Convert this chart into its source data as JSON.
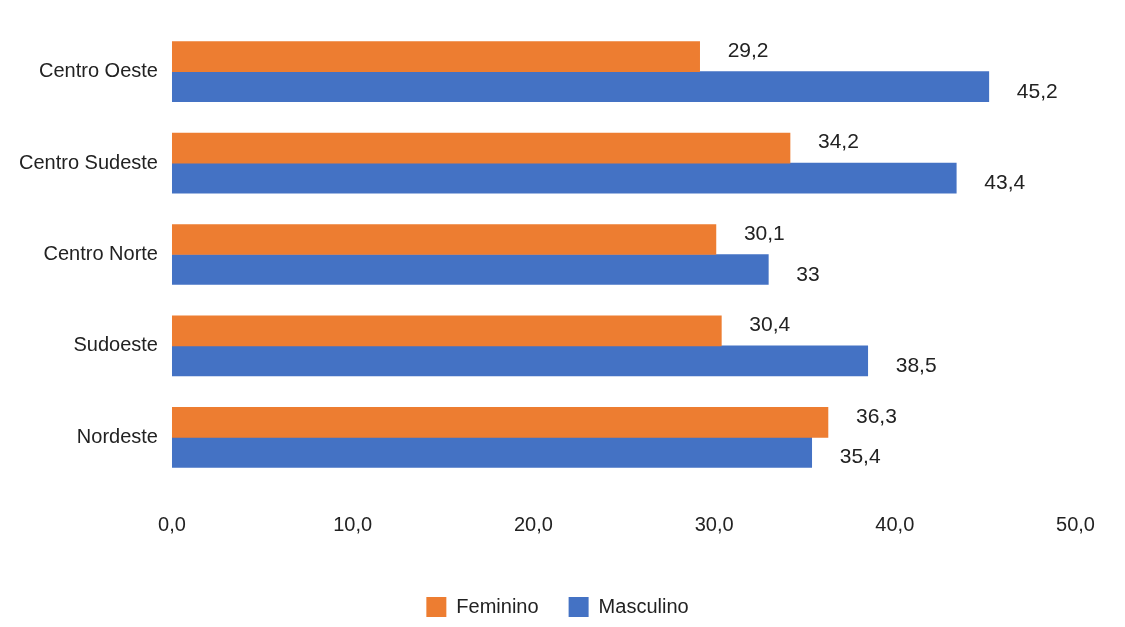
{
  "chart_data": {
    "type": "bar",
    "orientation": "horizontal",
    "categories": [
      "Centro Oeste",
      "Centro Sudeste",
      "Centro Norte",
      "Sudoeste",
      "Nordeste"
    ],
    "series": [
      {
        "name": "Feminino",
        "color": "#ed7d31",
        "values": [
          29.2,
          34.2,
          30.1,
          30.4,
          36.3
        ],
        "value_labels": [
          "29,2",
          "34,2",
          "30,1",
          "30,4",
          "36,3"
        ]
      },
      {
        "name": "Masculino",
        "color": "#4472c4",
        "values": [
          45.2,
          43.4,
          33,
          38.5,
          35.4
        ],
        "value_labels": [
          "45,2",
          "43,4",
          "33",
          "38,5",
          "35,4"
        ]
      }
    ],
    "xlim": [
      0,
      50
    ],
    "xticks": [
      {
        "value": 0,
        "label": "0,0"
      },
      {
        "value": 10,
        "label": "10,0"
      },
      {
        "value": 20,
        "label": "20,0"
      },
      {
        "value": 30,
        "label": "30,0"
      },
      {
        "value": 40,
        "label": "40,0"
      },
      {
        "value": 50,
        "label": "50,0"
      }
    ],
    "grid": false,
    "legend": "bottom"
  }
}
